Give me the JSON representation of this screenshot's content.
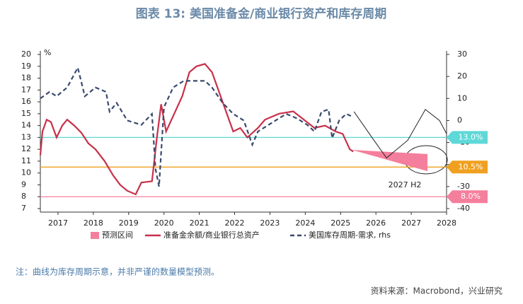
{
  "chart_data": {
    "type": "line",
    "title": "图表 13: 美国准备金/商业银行资产和库存周期",
    "y_unit": "%",
    "note": "注：曲线为库存周期示意，并非严谨的数量模型预测。",
    "source": "资料来源：Macrobond，兴业研究",
    "annotation": "2027 H2",
    "xlim": [
      2016.5,
      2028
    ],
    "xticks": [
      2017,
      2018,
      2019,
      2020,
      2021,
      2022,
      2023,
      2024,
      2025,
      2026,
      2027,
      2028
    ],
    "ylim": [
      7,
      20
    ],
    "yticks": [
      7,
      8,
      9,
      10,
      11,
      12,
      13,
      14,
      15,
      16,
      17,
      18,
      19,
      20
    ],
    "y2lim": [
      -40,
      30
    ],
    "y2ticks": [
      -40,
      -30,
      -20,
      -10,
      0,
      10,
      20,
      30
    ],
    "band": {
      "name": "预测区间",
      "color": "#f47f9c",
      "x": [
        2025.32,
        2027.46
      ],
      "upper": [
        11.95,
        11.6
      ],
      "lower": [
        11.95,
        10.15
      ]
    },
    "series": [
      {
        "name": "准备金余额/商业银行总资产",
        "color": "#c8304a",
        "x": [
          2016.5,
          2016.56,
          2016.68,
          2016.8,
          2016.96,
          2017.12,
          2017.26,
          2017.46,
          2017.66,
          2017.86,
          2018.06,
          2018.32,
          2018.56,
          2018.76,
          2018.96,
          2019.2,
          2019.36,
          2019.66,
          2019.8,
          2019.92,
          2020.06,
          2020.26,
          2020.52,
          2020.72,
          2020.92,
          2021.16,
          2021.36,
          2021.66,
          2021.96,
          2022.16,
          2022.36,
          2022.66,
          2022.86,
          2023.26,
          2023.66,
          2023.96,
          2024.26,
          2024.56,
          2024.86,
          2025.06,
          2025.26,
          2025.36
        ],
        "values": [
          11.5,
          13.5,
          14.5,
          14.3,
          13.0,
          14.0,
          14.5,
          14.0,
          13.4,
          12.5,
          12.0,
          11.0,
          9.8,
          9.0,
          8.5,
          8.2,
          9.2,
          9.3,
          13.0,
          15.8,
          13.5,
          14.8,
          16.5,
          18.5,
          19.0,
          19.2,
          18.5,
          16.0,
          13.5,
          13.8,
          13.0,
          13.8,
          14.5,
          15.0,
          15.2,
          14.5,
          13.8,
          14.0,
          13.5,
          13.3,
          12.0,
          11.8
        ]
      },
      {
        "name": "美国库存周期-需求, rhs",
        "color": "#3a4a6e",
        "axis": "y2",
        "dashed": true,
        "x": [
          2016.5,
          2016.76,
          2016.96,
          2017.26,
          2017.56,
          2017.76,
          2018.06,
          2018.36,
          2018.46,
          2018.66,
          2018.96,
          2019.36,
          2019.66,
          2019.76,
          2019.86,
          2020,
          2020.26,
          2020.56,
          2020.86,
          2021.16,
          2021.36,
          2021.66,
          2021.96,
          2022.26,
          2022.5,
          2022.66,
          2022.86,
          2023.16,
          2023.46,
          2023.76,
          2024.06,
          2024.26,
          2024.46,
          2024.66,
          2024.76,
          2024.96,
          2025.16,
          2025.3
        ],
        "values": [
          10,
          13,
          11,
          15,
          24,
          11,
          15,
          13,
          4,
          8,
          0,
          -2,
          3,
          -22,
          -30,
          6,
          15,
          18,
          18,
          18,
          15,
          8,
          3,
          0,
          -11,
          -5,
          -3,
          0,
          3,
          1,
          -2,
          -5,
          4,
          5,
          -8,
          0,
          3,
          2
        ]
      }
    ],
    "schematic": {
      "color": "#222222",
      "axis": "y2",
      "x": [
        2025.38,
        2025.9,
        2026.3,
        2026.9,
        2027.4,
        2027.8,
        2028
      ],
      "values": [
        4,
        -8,
        -17,
        -9,
        5,
        0,
        -6
      ]
    },
    "reference_lines": [
      {
        "value": 13,
        "label": "13.0%",
        "color": "#5fd8d8"
      },
      {
        "value": 10.5,
        "label": "10.5%",
        "color": "#f0a020"
      },
      {
        "value": 8,
        "label": "8.0%",
        "color": "#f47f9c"
      }
    ]
  }
}
